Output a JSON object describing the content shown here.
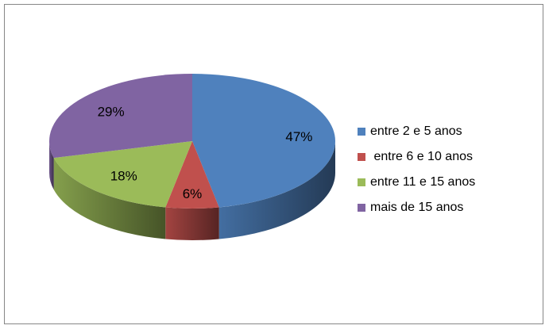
{
  "chart_data": {
    "type": "pie",
    "style": "3d",
    "categories": [
      "entre 2 e 5 anos",
      " entre 6 e 10 anos",
      "entre 11 e 15 anos",
      "mais de 15 anos"
    ],
    "values": [
      47,
      6,
      18,
      29
    ],
    "data_labels": [
      "47%",
      "6%",
      "18%",
      "29%"
    ],
    "colors": [
      "#4F81BD",
      "#C0504D",
      "#9BBB59",
      "#8064A2"
    ],
    "legend_position": "right"
  }
}
